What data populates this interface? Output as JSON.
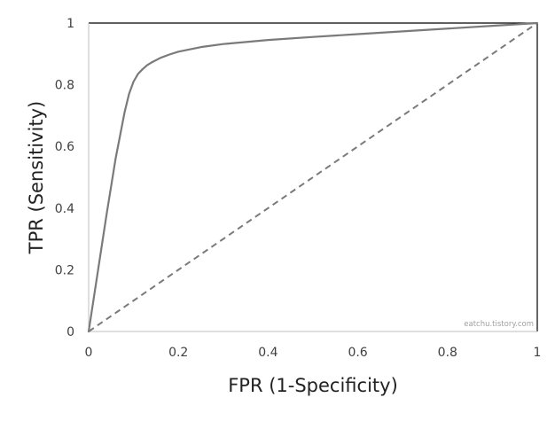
{
  "chart_data": {
    "type": "line",
    "xlabel": "FPR (1-Specificity)",
    "ylabel": "TPR (Sensitivity)",
    "xlim": [
      0,
      1
    ],
    "ylim": [
      0,
      1
    ],
    "x_ticks": [
      "0",
      "0.2",
      "0.4",
      "0.6",
      "0.8",
      "1"
    ],
    "y_ticks": [
      "0",
      "0.2",
      "0.4",
      "0.6",
      "0.8",
      "1"
    ],
    "x_tick_values": [
      0,
      0.2,
      0.4,
      0.6,
      0.8,
      1
    ],
    "y_tick_values": [
      0,
      0.2,
      0.4,
      0.6,
      0.8,
      1
    ],
    "grid": false,
    "series": [
      {
        "style": "solid",
        "color": "#7a7a7a",
        "x": [
          0,
          0.02,
          0.04,
          0.06,
          0.08,
          0.09,
          0.1,
          0.11,
          0.12,
          0.13,
          0.14,
          0.16,
          0.18,
          0.2,
          0.25,
          0.3,
          0.4,
          0.5,
          0.6,
          0.7,
          0.8,
          0.9,
          1.0
        ],
        "y": [
          0,
          0.19,
          0.38,
          0.56,
          0.71,
          0.77,
          0.81,
          0.835,
          0.85,
          0.863,
          0.872,
          0.887,
          0.898,
          0.907,
          0.922,
          0.932,
          0.945,
          0.955,
          0.964,
          0.973,
          0.982,
          0.991,
          1.0
        ]
      },
      {
        "style": "dashed",
        "color": "#7a7a7a",
        "x": [
          0,
          1
        ],
        "y": [
          0,
          1
        ]
      }
    ],
    "watermark": "eatchu.tistory.com"
  }
}
